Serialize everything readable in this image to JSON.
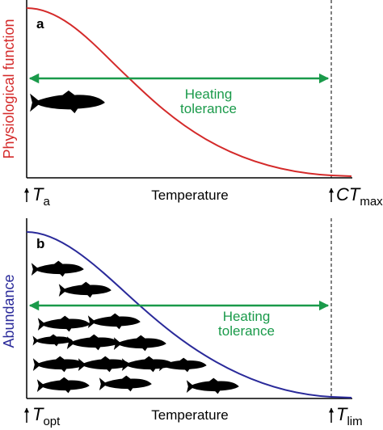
{
  "panels": [
    {
      "label": "a",
      "y_axis_label": "Physiological function",
      "x_axis_label": "Temperature",
      "annotation_lines": [
        "Heating",
        "tolerance"
      ],
      "left_marker": {
        "symbol": "T",
        "subscript": "a"
      },
      "right_marker": {
        "symbol": "CT",
        "subscript": "max"
      }
    },
    {
      "label": "b",
      "y_axis_label": "Abundance",
      "x_axis_label": "Temperature",
      "annotation_lines": [
        "Heating",
        "tolerance"
      ],
      "left_marker": {
        "symbol": "T",
        "subscript": "opt"
      },
      "right_marker": {
        "symbol": "T",
        "subscript": "lim"
      }
    }
  ]
}
